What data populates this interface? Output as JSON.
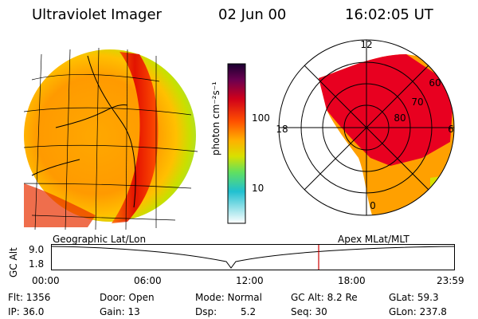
{
  "header": {
    "instrument": "Ultraviolet Imager",
    "date": "02 Jun 00",
    "time": "16:02:05 UT"
  },
  "colorbar": {
    "unit_label": "photon cm⁻²s⁻¹",
    "ticks": [
      "100",
      "10"
    ]
  },
  "polar_plot": {
    "mlt_labels": [
      "12",
      "18",
      "6",
      "0"
    ],
    "lat_labels": [
      "60",
      "70",
      "80"
    ]
  },
  "panel_labels": {
    "left": "Geographic Lat/Lon",
    "right": "Apex MLat/MLT"
  },
  "altitude_plot": {
    "axis_title": "GC Alt",
    "y_ticks": [
      "9.0",
      "1.8"
    ],
    "x_ticks": [
      "00:00",
      "06:00",
      "12:00",
      "18:00",
      "23:59"
    ]
  },
  "info": {
    "flt": "Flt: 1356",
    "ip": "IP: 36.0",
    "door": "Door: Open",
    "gain": "Gain: 13",
    "mode": "Mode: Normal",
    "dsp_label": "Dsp:",
    "dsp_value": "5.2",
    "gc_alt": "GC Alt: 8.2 Re",
    "seq": "Seq: 30",
    "glat": "GLat: 59.3",
    "glon": "GLon: 237.8"
  },
  "colors": {
    "background": "#ffffff",
    "current_time_marker": "#cc0000"
  }
}
